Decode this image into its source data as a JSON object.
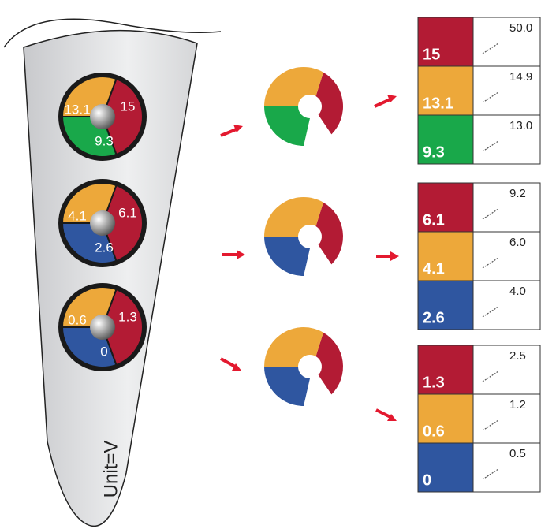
{
  "unit_label": "Unit=V",
  "groups": [
    {
      "segments": [
        {
          "label": "15",
          "color": "#b31b34"
        },
        {
          "label": "13.1",
          "color": "#eda83a"
        },
        {
          "label": "9.3",
          "color": "#19a84a"
        }
      ],
      "rows": [
        {
          "label": "15",
          "value": "50.0",
          "color": "#b31b34"
        },
        {
          "label": "13.1",
          "value": "14.9",
          "color": "#eda83a"
        },
        {
          "label": "9.3",
          "value": "13.0",
          "color": "#19a84a"
        }
      ]
    },
    {
      "segments": [
        {
          "label": "6.1",
          "color": "#b31b34"
        },
        {
          "label": "4.1",
          "color": "#eda83a"
        },
        {
          "label": "2.6",
          "color": "#2f56a0"
        }
      ],
      "rows": [
        {
          "label": "6.1",
          "value": "9.2",
          "color": "#b31b34"
        },
        {
          "label": "4.1",
          "value": "6.0",
          "color": "#eda83a"
        },
        {
          "label": "2.6",
          "value": "4.0",
          "color": "#2f56a0"
        }
      ]
    },
    {
      "segments": [
        {
          "label": "1.3",
          "color": "#b31b34"
        },
        {
          "label": "0.6",
          "color": "#eda83a"
        },
        {
          "label": "0",
          "color": "#2f56a0"
        }
      ],
      "rows": [
        {
          "label": "1.3",
          "value": "2.5",
          "color": "#b31b34"
        },
        {
          "label": "0.6",
          "value": "1.2",
          "color": "#eda83a"
        },
        {
          "label": "0",
          "value": "0.5",
          "color": "#2f56a0"
        }
      ]
    }
  ]
}
